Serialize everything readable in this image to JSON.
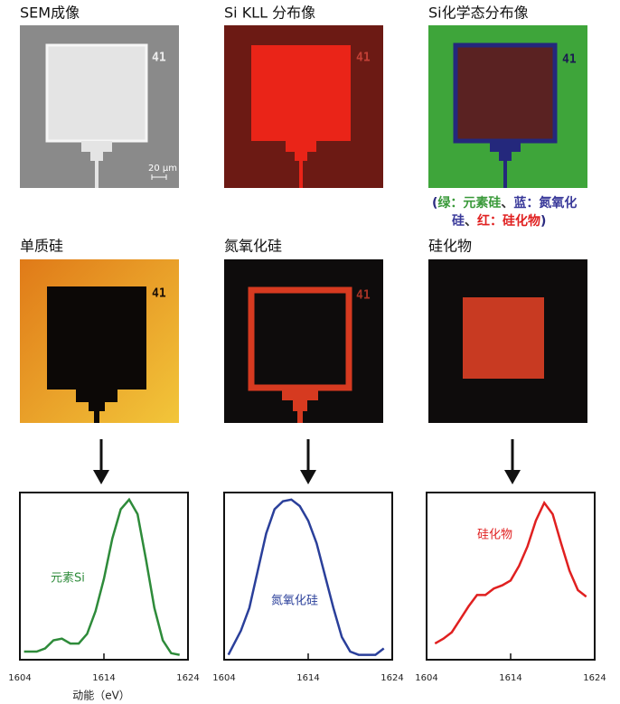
{
  "panels": [
    {
      "title": "SEM成像",
      "label": "41",
      "scale": "20 μm"
    },
    {
      "title": "Si KLL 分布像",
      "label": "41"
    },
    {
      "title": "Si化学态分布像",
      "label": "41"
    },
    {
      "title": "单质硅",
      "label": "41"
    },
    {
      "title": "氮氧化硅",
      "label": "41"
    },
    {
      "title": "硅化物"
    }
  ],
  "legend_note": [
    [
      {
        "text": "(",
        "color": "#2a2a80"
      },
      {
        "text": "绿：元素硅",
        "color": "#3a9a3a"
      },
      {
        "text": "、",
        "color": "#333333"
      },
      {
        "text": "蓝：氮氧化",
        "color": "#3a3a9a"
      }
    ],
    [
      {
        "text": "硅",
        "color": "#3a3a9a"
      },
      {
        "text": "、",
        "color": "#333333"
      },
      {
        "text": "红：硅化物",
        "color": "#e02020"
      },
      {
        "text": ")",
        "color": "#2a2a80"
      }
    ]
  ],
  "chart_data": [
    {
      "type": "line",
      "xlabel": "动能（eV）",
      "xlim": [
        1604,
        1624
      ],
      "xticks": [
        1604,
        1614,
        1624
      ],
      "ylim": [
        0,
        1
      ],
      "grid": false,
      "x": [
        1604.5,
        1606,
        1607,
        1608,
        1609,
        1610,
        1611,
        1612,
        1613,
        1614,
        1615,
        1616,
        1617,
        1618,
        1619,
        1620,
        1621,
        1622,
        1623
      ],
      "series": [
        {
          "name": "元素Si",
          "color": "#2e8b3a",
          "values": [
            0.05,
            0.05,
            0.07,
            0.12,
            0.13,
            0.1,
            0.1,
            0.16,
            0.3,
            0.5,
            0.75,
            0.93,
            0.99,
            0.9,
            0.62,
            0.32,
            0.12,
            0.04,
            0.03
          ]
        }
      ]
    },
    {
      "type": "line",
      "xlim": [
        1604,
        1624
      ],
      "xticks": [
        1604,
        1614,
        1624
      ],
      "ylim": [
        0,
        1
      ],
      "grid": false,
      "x": [
        1604.5,
        1605,
        1606,
        1607,
        1608,
        1609,
        1610,
        1611,
        1612,
        1613,
        1614,
        1615,
        1616,
        1617,
        1618,
        1619,
        1620,
        1621,
        1622,
        1623
      ],
      "series": [
        {
          "name": "氮氧化硅",
          "color": "#2a3f9a",
          "values": [
            0.03,
            0.08,
            0.18,
            0.32,
            0.55,
            0.78,
            0.93,
            0.98,
            0.99,
            0.95,
            0.86,
            0.72,
            0.52,
            0.32,
            0.14,
            0.05,
            0.03,
            0.03,
            0.03,
            0.07
          ]
        }
      ]
    },
    {
      "type": "line",
      "xlim": [
        1604,
        1624
      ],
      "xticks": [
        1604,
        1614,
        1624
      ],
      "ylim": [
        0,
        1
      ],
      "grid": false,
      "x": [
        1605,
        1606,
        1607,
        1608,
        1609,
        1610,
        1611,
        1612,
        1613,
        1614,
        1615,
        1616,
        1617,
        1618,
        1619,
        1620,
        1621,
        1622,
        1623
      ],
      "series": [
        {
          "name": "硅化物",
          "color": "#e02020",
          "values": [
            0.1,
            0.13,
            0.17,
            0.25,
            0.33,
            0.4,
            0.4,
            0.44,
            0.46,
            0.49,
            0.58,
            0.7,
            0.86,
            0.97,
            0.9,
            0.72,
            0.55,
            0.43,
            0.39
          ]
        }
      ]
    }
  ]
}
